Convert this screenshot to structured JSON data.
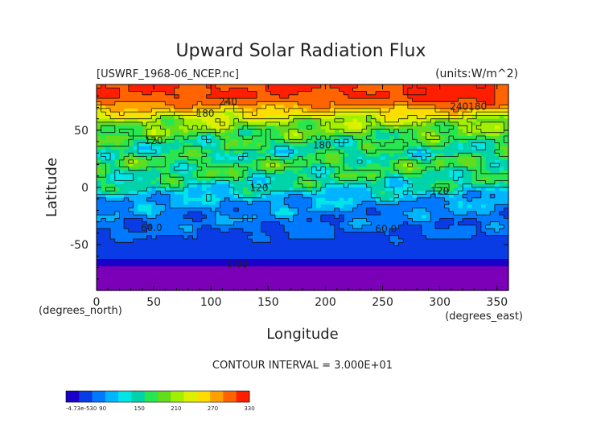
{
  "chart_data": {
    "type": "heatmap",
    "title": "Upward Solar Radiation Flux",
    "file_label": "[USWRF_1968-06_NCEP.nc]",
    "units_label": "(units:W/m^2)",
    "xlabel": "Longitude",
    "ylabel": "Latitude",
    "x_unit_note": "(degrees_east)",
    "y_unit_note": "(degrees_north)",
    "xlim": [
      0,
      360
    ],
    "ylim": [
      -90,
      90
    ],
    "x_ticks": [
      0,
      50,
      100,
      150,
      200,
      250,
      300,
      350
    ],
    "y_ticks": [
      50,
      0,
      -50
    ],
    "contour_interval_text": "CONTOUR INTERVAL = 3.000E+01",
    "zonal_profile": {
      "lat": [
        -90,
        -80,
        -70,
        -60,
        -50,
        -40,
        -30,
        -20,
        -10,
        0,
        10,
        20,
        30,
        40,
        50,
        60,
        70,
        75,
        80,
        90
      ],
      "value": [
        0,
        0,
        5,
        35,
        45,
        60,
        75,
        85,
        100,
        125,
        140,
        150,
        135,
        145,
        165,
        190,
        250,
        280,
        300,
        300
      ]
    },
    "contour_labels": [
      {
        "text": "240",
        "lon": 115,
        "lat": 72
      },
      {
        "text": "180",
        "lon": 95,
        "lat": 62
      },
      {
        "text": "120",
        "lon": 50,
        "lat": 38
      },
      {
        "text": "180",
        "lon": 197,
        "lat": 34
      },
      {
        "text": "120",
        "lon": 142,
        "lat": -3
      },
      {
        "text": "120",
        "lon": 300,
        "lat": -6
      },
      {
        "text": "240180",
        "lon": 325,
        "lat": 68
      },
      {
        "text": "60.0",
        "lon": 48,
        "lat": -38
      },
      {
        "text": "60.0",
        "lon": 253,
        "lat": -39
      },
      {
        "text": "0.00",
        "lon": 123,
        "lat": -70
      }
    ],
    "colorbar": {
      "colors": [
        "#1a00c8",
        "#0a3ce6",
        "#0078ff",
        "#00b4ff",
        "#00e6e6",
        "#00d2aa",
        "#28e650",
        "#64dc1e",
        "#a0f000",
        "#dcf000",
        "#ffdc00",
        "#ffa000",
        "#ff6400",
        "#ff1e00"
      ],
      "tick_labels": [
        "-4.73e-530",
        "90",
        "150",
        "210",
        "270",
        "330"
      ]
    }
  }
}
